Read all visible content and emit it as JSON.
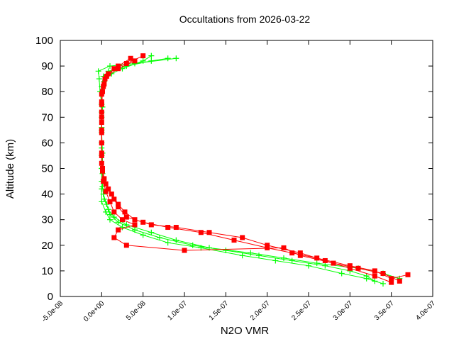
{
  "chart_data": {
    "type": "line",
    "title": "Occultations from 2026-03-22",
    "xlabel": "N2O VMR",
    "ylabel": "Altitude (km)",
    "xlim": [
      -5e-08,
      4e-07
    ],
    "ylim": [
      0,
      100
    ],
    "xticks": [
      -5e-08,
      0,
      5e-08,
      1e-07,
      1.5e-07,
      2e-07,
      2.5e-07,
      3e-07,
      3.5e-07,
      4e-07
    ],
    "xtick_labels": [
      "-5.0e-08",
      "0.0e+00",
      "5.0e-08",
      "1.0e-07",
      "1.5e-07",
      "2.0e-07",
      "2.5e-07",
      "3.0e-07",
      "3.5e-07",
      "4.0e-07"
    ],
    "yticks": [
      0,
      10,
      20,
      30,
      40,
      50,
      60,
      70,
      80,
      90,
      100
    ],
    "ytick_labels": [
      "0",
      "10",
      "20",
      "30",
      "40",
      "50",
      "60",
      "70",
      "80",
      "90",
      "100"
    ],
    "grid": false,
    "legend": "none",
    "series": [
      {
        "color": "#00ff00",
        "marker": "cross",
        "profiles": [
          [
            [
              3.3e-07,
              6
            ],
            [
              3.2e-07,
              8
            ],
            [
              3e-07,
              10
            ],
            [
              2.7e-07,
              12
            ],
            [
              2.3e-07,
              14
            ],
            [
              1.9e-07,
              16
            ],
            [
              1.5e-07,
              18
            ],
            [
              1.1e-07,
              20
            ],
            [
              7e-08,
              23
            ],
            [
              4e-08,
              26
            ],
            [
              2e-08,
              29
            ],
            [
              1e-08,
              32
            ],
            [
              6e-09,
              36
            ],
            [
              2e-09,
              40
            ],
            [
              0,
              45
            ],
            [
              0,
              50
            ],
            [
              0,
              55
            ],
            [
              0,
              60
            ],
            [
              0,
              65
            ],
            [
              0,
              70
            ],
            [
              0,
              75
            ],
            [
              -2e-09,
              80
            ],
            [
              -3e-09,
              85
            ],
            [
              -4e-09,
              88
            ],
            [
              1e-08,
              90
            ],
            [
              4e-08,
              91
            ],
            [
              9e-08,
              93
            ]
          ],
          [
            [
              3.6e-07,
              7
            ],
            [
              3.4e-07,
              9
            ],
            [
              3.1e-07,
              11
            ],
            [
              2.6e-07,
              13
            ],
            [
              2.2e-07,
              15
            ],
            [
              1.8e-07,
              17
            ],
            [
              1.3e-07,
              19
            ],
            [
              9e-08,
              22
            ],
            [
              6e-08,
              25
            ],
            [
              3e-08,
              28
            ],
            [
              1.5e-08,
              31
            ],
            [
              8e-09,
              34
            ],
            [
              3e-09,
              38
            ],
            [
              1e-09,
              43
            ],
            [
              0,
              50
            ],
            [
              0,
              58
            ],
            [
              0,
              66
            ],
            [
              1e-09,
              74
            ],
            [
              0,
              82
            ],
            [
              2e-09,
              86
            ],
            [
              8e-09,
              88
            ],
            [
              3e-08,
              90
            ],
            [
              6e-08,
              92
            ],
            [
              8e-08,
              93
            ]
          ],
          [
            [
              3.4e-07,
              5
            ],
            [
              3.2e-07,
              7
            ],
            [
              2.9e-07,
              9
            ],
            [
              2.5e-07,
              12
            ],
            [
              2.1e-07,
              14
            ],
            [
              1.7e-07,
              16
            ],
            [
              1.2e-07,
              19
            ],
            [
              8e-08,
              21
            ],
            [
              5e-08,
              24
            ],
            [
              2.5e-08,
              27
            ],
            [
              1e-08,
              30
            ],
            [
              5e-09,
              33
            ],
            [
              0,
              37
            ],
            [
              0,
              42
            ],
            [
              1e-09,
              48
            ],
            [
              1e-09,
              56
            ],
            [
              0,
              64
            ],
            [
              0,
              72
            ],
            [
              0,
              80
            ],
            [
              3e-09,
              84
            ],
            [
              1.2e-08,
              87
            ],
            [
              2.5e-08,
              89
            ],
            [
              5e-08,
              92
            ],
            [
              6e-08,
              94
            ]
          ]
        ]
      },
      {
        "color": "#ff0000",
        "marker": "square",
        "profiles": [
          [
            [
              3.7e-07,
              8.5
            ],
            [
              3.5e-07,
              7
            ],
            [
              3.3e-07,
              10
            ],
            [
              3e-07,
              12
            ],
            [
              2.6e-07,
              15
            ],
            [
              2.3e-07,
              17
            ],
            [
              2e-07,
              19
            ],
            [
              1.6e-07,
              22
            ],
            [
              1.2e-07,
              25
            ],
            [
              8e-08,
              27
            ],
            [
              5e-08,
              29
            ],
            [
              3e-08,
              31
            ],
            [
              2e-08,
              35
            ],
            [
              1.5e-08,
              38
            ],
            [
              8e-09,
              42
            ],
            [
              3e-09,
              46
            ],
            [
              1e-09,
              50
            ],
            [
              0,
              55
            ],
            [
              0,
              60
            ],
            [
              0,
              65
            ],
            [
              0,
              70
            ],
            [
              0,
              75
            ],
            [
              1e-09,
              80
            ],
            [
              4e-09,
              85
            ],
            [
              1.5e-08,
              89
            ],
            [
              3e-08,
              91
            ],
            [
              5e-08,
              94
            ]
          ],
          [
            [
              3.6e-07,
              6
            ],
            [
              3.4e-07,
              9
            ],
            [
              3.1e-07,
              11
            ],
            [
              2.8e-07,
              13
            ],
            [
              2.4e-07,
              16
            ],
            [
              2.2e-07,
              19
            ],
            [
              1e-07,
              18
            ],
            [
              3e-08,
              20
            ],
            [
              1.5e-08,
              23
            ],
            [
              2e-08,
              26
            ],
            [
              4e-08,
              28
            ],
            [
              2.5e-08,
              30
            ],
            [
              1.5e-08,
              33
            ],
            [
              1e-08,
              37
            ],
            [
              5e-09,
              41
            ],
            [
              2e-09,
              45
            ],
            [
              0,
              52
            ],
            [
              0,
              60
            ],
            [
              0,
              68
            ],
            [
              0,
              76
            ],
            [
              2e-09,
              82
            ],
            [
              6e-09,
              86
            ],
            [
              2e-08,
              89
            ],
            [
              4e-08,
              92
            ]
          ],
          [
            [
              3.5e-07,
              5.5
            ],
            [
              3.3e-07,
              8
            ],
            [
              3e-07,
              11
            ],
            [
              2.7e-07,
              14
            ],
            [
              2.4e-07,
              17
            ],
            [
              2e-07,
              20
            ],
            [
              1.7e-07,
              23
            ],
            [
              1.3e-07,
              25
            ],
            [
              9e-08,
              27
            ],
            [
              6e-08,
              28
            ],
            [
              4e-08,
              30
            ],
            [
              2.8e-08,
              33
            ],
            [
              2e-08,
              36
            ],
            [
              1.2e-08,
              40
            ],
            [
              5e-09,
              44
            ],
            [
              1e-09,
              49
            ],
            [
              0,
              56
            ],
            [
              0,
              64
            ],
            [
              0,
              72
            ],
            [
              0,
              79
            ],
            [
              3e-09,
              83
            ],
            [
              8e-09,
              87
            ],
            [
              2e-08,
              90
            ],
            [
              3.5e-08,
              93
            ]
          ]
        ]
      }
    ]
  }
}
